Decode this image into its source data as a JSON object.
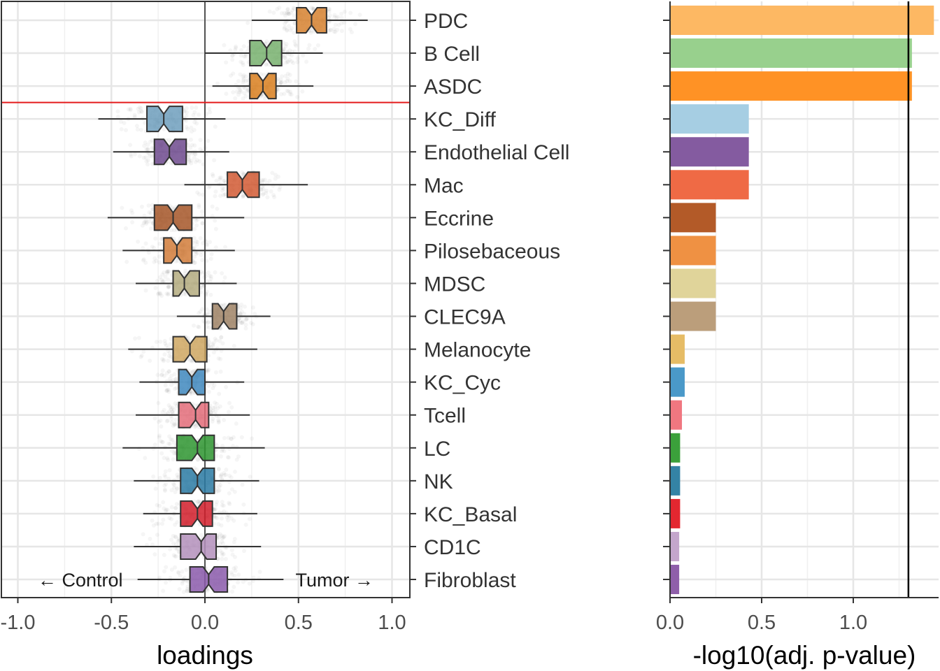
{
  "chart_data": [
    {
      "type": "boxplot",
      "xlabel": "loadings",
      "xlim": [
        -1.05,
        1.1
      ],
      "x_ticks": [
        -1.0,
        -0.5,
        0.0,
        0.5,
        1.0
      ],
      "x_tick_labels": [
        "-1.0",
        "-0.5",
        "0.0",
        "0.5",
        "1.0"
      ],
      "reference_line_x": 0,
      "separator_line_after": "ASDC",
      "separator_color": "#e41a1c",
      "annotations": {
        "left": "← Control",
        "right": "Tumor →"
      },
      "grid": true,
      "categories": [
        "PDC",
        "B Cell",
        "ASDC",
        "KC_Diff",
        "Endothelial Cell",
        "Mac",
        "Eccrine",
        "Pilosebaceous",
        "MDSC",
        "CLEC9A",
        "Melanocyte",
        "KC_Cyc",
        "Tcell",
        "LC",
        "NK",
        "KC_Basal",
        "CD1C",
        "Fibroblast"
      ],
      "boxes": [
        {
          "category": "PDC",
          "whisker_low": 0.25,
          "q1": 0.49,
          "median": 0.57,
          "q3": 0.65,
          "whisker_high": 0.87,
          "color": "#d6812f"
        },
        {
          "category": "B Cell",
          "whisker_low": 0.0,
          "q1": 0.24,
          "median": 0.33,
          "q3": 0.41,
          "whisker_high": 0.63,
          "color": "#78b26e"
        },
        {
          "category": "ASDC",
          "whisker_low": 0.04,
          "q1": 0.24,
          "median": 0.31,
          "q3": 0.38,
          "whisker_high": 0.58,
          "color": "#d97f1f"
        },
        {
          "category": "KC_Diff",
          "whisker_low": -0.57,
          "q1": -0.31,
          "median": -0.22,
          "q3": -0.12,
          "whisker_high": 0.11,
          "color": "#6f9fbd"
        },
        {
          "category": "Endothelial Cell",
          "whisker_low": -0.49,
          "q1": -0.27,
          "median": -0.19,
          "q3": -0.1,
          "whisker_high": 0.13,
          "color": "#6e4a8e"
        },
        {
          "category": "Mac",
          "whisker_low": -0.11,
          "q1": 0.12,
          "median": 0.2,
          "q3": 0.29,
          "whisker_high": 0.55,
          "color": "#d25a34"
        },
        {
          "category": "Eccrine",
          "whisker_low": -0.52,
          "q1": -0.27,
          "median": -0.17,
          "q3": -0.07,
          "whisker_high": 0.21,
          "color": "#a65628"
        },
        {
          "category": "Pilosebaceous",
          "whisker_low": -0.44,
          "q1": -0.22,
          "median": -0.15,
          "q3": -0.07,
          "whisker_high": 0.16,
          "color": "#d27c3a"
        },
        {
          "category": "MDSC",
          "whisker_low": -0.37,
          "q1": -0.17,
          "median": -0.11,
          "q3": -0.03,
          "whisker_high": 0.17,
          "color": "#b5ad80"
        },
        {
          "category": "CLEC9A",
          "whisker_low": -0.15,
          "q1": 0.04,
          "median": 0.1,
          "q3": 0.17,
          "whisker_high": 0.35,
          "color": "#a08466"
        },
        {
          "category": "Melanocyte",
          "whisker_low": -0.41,
          "q1": -0.17,
          "median": -0.08,
          "q3": 0.01,
          "whisker_high": 0.28,
          "color": "#cfa761"
        },
        {
          "category": "KC_Cyc",
          "whisker_low": -0.35,
          "q1": -0.14,
          "median": -0.07,
          "q3": 0.0,
          "whisker_high": 0.21,
          "color": "#3f88be"
        },
        {
          "category": "Tcell",
          "whisker_low": -0.37,
          "q1": -0.14,
          "median": -0.05,
          "q3": 0.02,
          "whisker_high": 0.24,
          "color": "#e46d7a"
        },
        {
          "category": "LC",
          "whisker_low": -0.44,
          "q1": -0.15,
          "median": -0.04,
          "q3": 0.05,
          "whisker_high": 0.32,
          "color": "#2e9530"
        },
        {
          "category": "NK",
          "whisker_low": -0.38,
          "q1": -0.13,
          "median": -0.04,
          "q3": 0.05,
          "whisker_high": 0.29,
          "color": "#2a7aa3"
        },
        {
          "category": "KC_Basal",
          "whisker_low": -0.33,
          "q1": -0.13,
          "median": -0.04,
          "q3": 0.04,
          "whisker_high": 0.28,
          "color": "#d21f2b"
        },
        {
          "category": "CD1C",
          "whisker_low": -0.38,
          "q1": -0.13,
          "median": -0.02,
          "q3": 0.06,
          "whisker_high": 0.3,
          "color": "#b490bc"
        },
        {
          "category": "Fibroblast",
          "whisker_low": -0.36,
          "q1": -0.08,
          "median": 0.02,
          "q3": 0.12,
          "whisker_high": 0.42,
          "color": "#8b5aab"
        }
      ]
    },
    {
      "type": "bar",
      "orientation": "horizontal",
      "xlabel": "-log10(adj. p-value)",
      "xlim": [
        0,
        1.45
      ],
      "x_ticks": [
        0.0,
        0.5,
        1.0
      ],
      "x_tick_labels": [
        "0.0",
        "0.5",
        "1.0"
      ],
      "threshold_x": 1.301,
      "grid": true,
      "categories": [
        "PDC",
        "B Cell",
        "ASDC",
        "KC_Diff",
        "Endothelial Cell",
        "Mac",
        "Eccrine",
        "Pilosebaceous",
        "MDSC",
        "CLEC9A",
        "Melanocyte",
        "KC_Cyc",
        "Tcell",
        "LC",
        "NK",
        "KC_Basal",
        "CD1C",
        "Fibroblast"
      ],
      "values": [
        1.44,
        1.32,
        1.32,
        0.43,
        0.43,
        0.43,
        0.25,
        0.25,
        0.25,
        0.25,
        0.08,
        0.08,
        0.065,
        0.055,
        0.055,
        0.055,
        0.05,
        0.05
      ],
      "colors": [
        "#fdb863",
        "#98d08d",
        "#ff9225",
        "#a6cee3",
        "#845ba0",
        "#ef6a45",
        "#b35a28",
        "#ef9143",
        "#e0d49a",
        "#bb9e7b",
        "#e6bc66",
        "#4a99c9",
        "#f07780",
        "#3ba13b",
        "#3483a5",
        "#e32730",
        "#c4a6cc",
        "#8f5faa"
      ]
    }
  ]
}
